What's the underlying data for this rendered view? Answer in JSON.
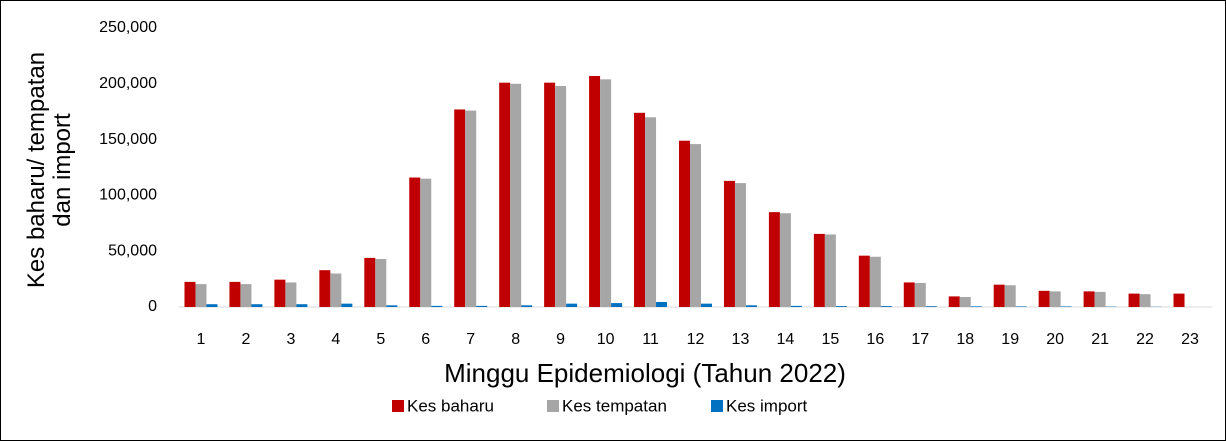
{
  "chart_data": {
    "type": "bar",
    "ylabel": "Kes baharu/ tempatan dan import",
    "xlabel": "Minggu Epidemiologi (Tahun 2022)",
    "categories": [
      "1",
      "2",
      "3",
      "4",
      "5",
      "6",
      "7",
      "8",
      "9",
      "10",
      "11",
      "12",
      "13",
      "14",
      "15",
      "16",
      "17",
      "18",
      "19",
      "20",
      "21",
      "22",
      "23"
    ],
    "series": [
      {
        "name": "Kes baharu",
        "color": "#c00000",
        "values": [
          22500,
          22500,
          24500,
          33000,
          44000,
          116000,
          177000,
          201000,
          201000,
          207000,
          174000,
          149000,
          113000,
          85000,
          65500,
          46000,
          22000,
          9500,
          20000,
          14500,
          14000,
          12000,
          12000
        ]
      },
      {
        "name": "Kes tempatan",
        "color": "#a6a6a6",
        "values": [
          20500,
          20500,
          22000,
          30000,
          43000,
          115000,
          176000,
          200000,
          198000,
          204000,
          170000,
          146000,
          111000,
          84000,
          65000,
          45000,
          21500,
          9000,
          19500,
          14000,
          13500,
          11500,
          null
        ]
      },
      {
        "name": "Kes import",
        "color": "#0070c0",
        "values": [
          2500,
          2500,
          2500,
          3000,
          1500,
          1000,
          1000,
          1500,
          3000,
          3500,
          4500,
          3000,
          1500,
          1000,
          800,
          800,
          700,
          600,
          500,
          500,
          300,
          200,
          null
        ]
      }
    ],
    "ylim": [
      0,
      250000
    ],
    "yticks": [
      {
        "value": 0,
        "label": "0"
      },
      {
        "value": 50000,
        "label": "50,000"
      },
      {
        "value": 100000,
        "label": "100,000"
      },
      {
        "value": 150000,
        "label": "150,000"
      },
      {
        "value": 200000,
        "label": "200,000"
      },
      {
        "value": 250000,
        "label": "250,000"
      }
    ],
    "legend": "bottom",
    "grid": false
  }
}
